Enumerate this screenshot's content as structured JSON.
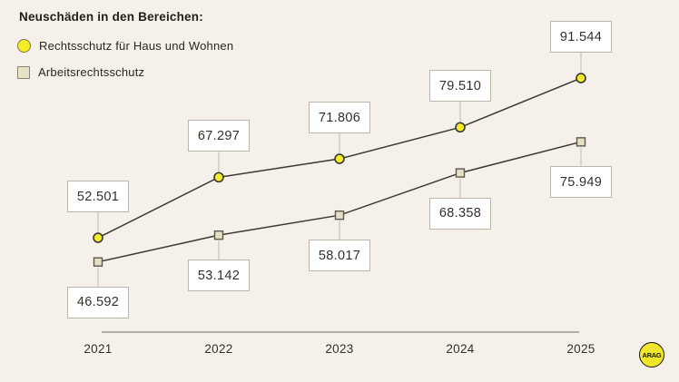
{
  "title": "Neuschäden in den Bereichen:",
  "legend": {
    "items": [
      {
        "label": "Rechtsschutz für Haus und Wohnen",
        "marker": "circle",
        "color": "#f3eb2e"
      },
      {
        "label": "Arbeitsrechtsschutz",
        "marker": "square",
        "color": "#e6dfc6"
      }
    ]
  },
  "chart_data": {
    "type": "line",
    "title": "Neuschäden in den Bereichen:",
    "categories": [
      "2021",
      "2022",
      "2023",
      "2024",
      "2025"
    ],
    "series": [
      {
        "name": "Rechtsschutz für Haus und Wohnen",
        "values": [
          52501,
          67297,
          71806,
          79510,
          91544
        ],
        "labels": [
          "52.501",
          "67.297",
          "71.806",
          "79.510",
          "91.544"
        ],
        "marker": "circle",
        "marker_color": "#f3eb2e",
        "label_position": "above"
      },
      {
        "name": "Arbeitsrechtsschutz",
        "values": [
          46592,
          53142,
          58017,
          68358,
          75949
        ],
        "labels": [
          "46.592",
          "53.142",
          "58.017",
          "68.358",
          "75.949"
        ],
        "marker": "square",
        "marker_color": "#e6dfc6",
        "label_position": "below"
      }
    ],
    "xlabel": "",
    "ylabel": "",
    "ylim": [
      40000,
      95000
    ],
    "grid": false,
    "legend_position": "top-left"
  },
  "x_axis": {
    "labels": [
      "2021",
      "2022",
      "2023",
      "2024",
      "2025"
    ]
  },
  "logo": {
    "text": "ARAG",
    "color": "#f0e62b"
  },
  "colors": {
    "background": "#f5f0e9",
    "line": "#3b382f",
    "connector": "#c9c3b5",
    "axis": "#8d887c",
    "box_background": "#ffffff",
    "box_border": "#bcb6a9",
    "text": "#33302b",
    "square_border": "#5d594f"
  }
}
